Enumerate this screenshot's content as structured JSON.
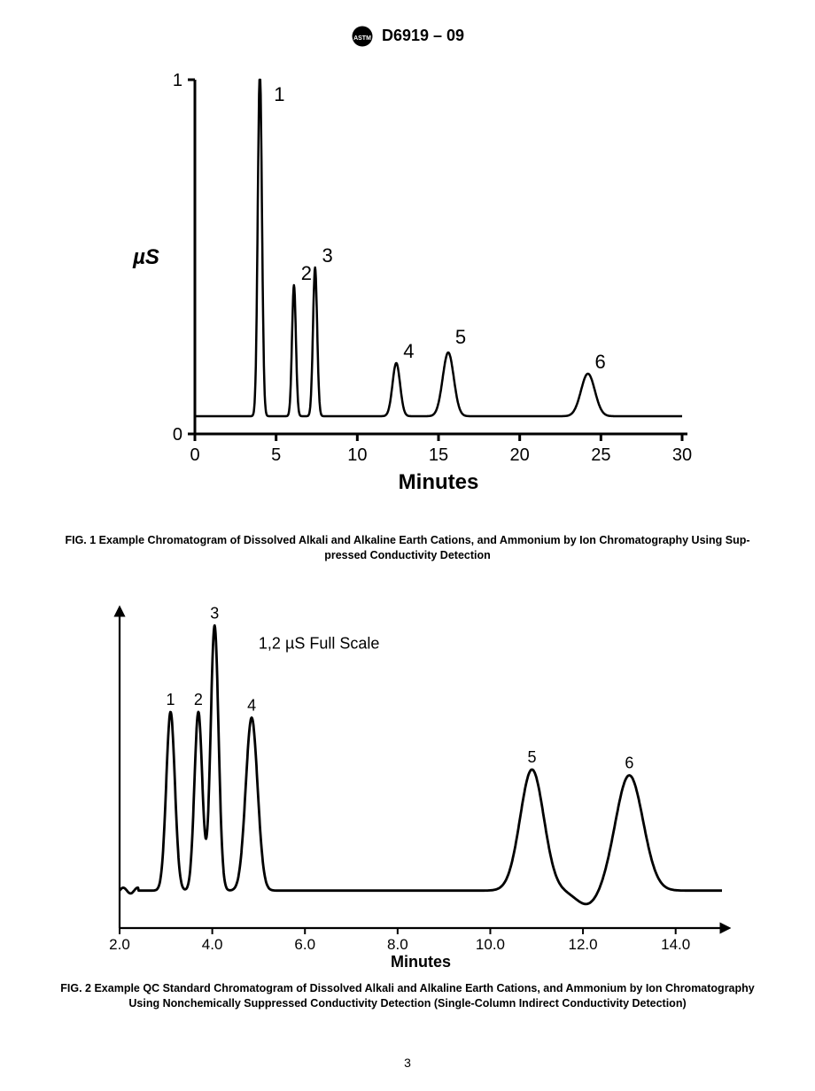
{
  "header": {
    "standard_id": "D6919 – 09",
    "logo_text": "ASTM"
  },
  "page_number": "3",
  "fig1": {
    "type": "line",
    "caption_line1": "FIG. 1 Example Chromatogram of Dissolved Alkali and Alkaline Earth Cations, and Ammonium by Ion Chromatography Using Sup-",
    "caption_line2": "pressed Conductivity Detection",
    "x_label": "Minutes",
    "y_label": "µS",
    "x_ticks": [
      0,
      5,
      10,
      15,
      20,
      25,
      30
    ],
    "y_ticks": [
      0,
      1
    ],
    "xlim": [
      0,
      30
    ],
    "ylim": [
      0,
      1
    ],
    "stroke_color": "#000000",
    "stroke_width": 2.5,
    "background_color": "#ffffff",
    "label_fontsize": 22,
    "tick_fontsize": 20,
    "axislabel_fontsize": 24,
    "axislabel_fontweight": "bold",
    "baseline_y": 0.05,
    "peaks": [
      {
        "label": "1",
        "x": 4.0,
        "height": 0.98,
        "width": 0.3
      },
      {
        "label": "2",
        "x": 6.1,
        "height": 0.37,
        "width": 0.28
      },
      {
        "label": "3",
        "x": 7.4,
        "height": 0.42,
        "width": 0.3
      },
      {
        "label": "4",
        "x": 12.4,
        "height": 0.15,
        "width": 0.55
      },
      {
        "label": "5",
        "x": 15.6,
        "height": 0.18,
        "width": 0.8
      },
      {
        "label": "6",
        "x": 24.2,
        "height": 0.12,
        "width": 1.0
      }
    ]
  },
  "fig2": {
    "type": "line",
    "caption_line1": "FIG. 2 Example QC Standard Chromatogram of Dissolved Alkali and Alkaline Earth Cations, and Ammonium by Ion Chromatography",
    "caption_line2": "Using Nonchemically Suppressed Conductivity Detection (Single-Column Indirect Conductivity Detection)",
    "x_label": "Minutes",
    "annotation": "1,2 µS Full Scale",
    "x_ticks": [
      2.0,
      4.0,
      6.0,
      8.0,
      10.0,
      12.0,
      14.0
    ],
    "xlim": [
      2.0,
      15.0
    ],
    "ylim": [
      0,
      1.1
    ],
    "stroke_color": "#000000",
    "stroke_width": 2.8,
    "background_color": "#ffffff",
    "annotation_fontsize": 18,
    "label_fontsize": 18,
    "tick_fontsize": 17,
    "axislabel_fontsize": 18,
    "axislabel_fontweight": "bold",
    "baseline_y": 0.13,
    "peaks": [
      {
        "label": "1",
        "x": 3.1,
        "height": 0.62,
        "width": 0.22
      },
      {
        "label": "2",
        "x": 3.7,
        "height": 0.62,
        "width": 0.2
      },
      {
        "label": "3",
        "x": 4.05,
        "height": 0.92,
        "width": 0.2
      },
      {
        "label": "4",
        "x": 4.85,
        "height": 0.6,
        "width": 0.3
      },
      {
        "label": "5",
        "x": 10.9,
        "height": 0.42,
        "width": 0.6
      },
      {
        "label": "6",
        "x": 13.0,
        "height": 0.4,
        "width": 0.7
      }
    ]
  }
}
